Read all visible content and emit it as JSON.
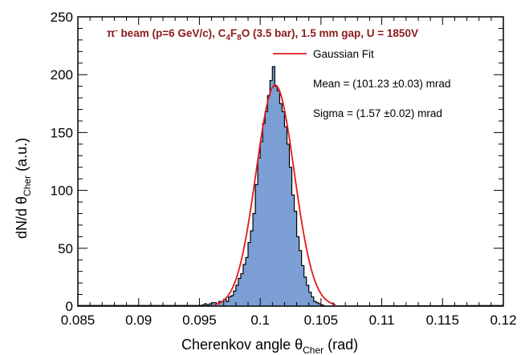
{
  "chart_data": {
    "type": "bar",
    "subtype": "histogram-with-fit",
    "title": {
      "beam": "π",
      "beam_sup": "-",
      "part1": " beam (p=6 GeV/c), C",
      "sub1": "4",
      "part2": "F",
      "sub2": "8",
      "part3": "O (3.5 bar), 1.5 mm gap, U = 1850V",
      "color": "#8b1a1a"
    },
    "xlabel": {
      "main": "Cherenkov angle θ",
      "sub": "Cher",
      "suffix": " (rad)"
    },
    "ylabel": {
      "main": "dN/d θ",
      "sub": "Cher",
      "suffix": " (a.u.)"
    },
    "xlim": [
      0.085,
      0.12
    ],
    "ylim": [
      0,
      250
    ],
    "x_ticks": [
      0.085,
      0.09,
      0.095,
      0.1,
      0.105,
      0.11,
      0.115,
      0.12
    ],
    "x_tick_labels": [
      "0.085",
      "0.09",
      "0.095",
      "0.1",
      "0.105",
      "0.11",
      "0.115",
      "0.12"
    ],
    "y_ticks": [
      0,
      50,
      100,
      150,
      200,
      250
    ],
    "y_tick_labels": [
      "0",
      "50",
      "100",
      "150",
      "200",
      "250"
    ],
    "grid": false,
    "legend": {
      "position": "top-right",
      "fit_label": "Gaussian Fit",
      "mean_text": "Mean  = (101.23  ±0.03) mrad",
      "sigma_text": "Sigma = (1.57  ±0.02) mrad"
    },
    "series": [
      {
        "type": "histogram",
        "fill_color": "#7b9fd4",
        "edge_color": "#000000",
        "bin_width": 0.0002,
        "bin_start": 0.0952,
        "counts": [
          1,
          2,
          1,
          2,
          3,
          3,
          2,
          4,
          4,
          6,
          4,
          8,
          9,
          13,
          18,
          24,
          28,
          36,
          42,
          55,
          65,
          80,
          105,
          128,
          142,
          158,
          168,
          182,
          195,
          207,
          190,
          186,
          175,
          168,
          155,
          140,
          120,
          96,
          82,
          60,
          48,
          35,
          25,
          18,
          12,
          8,
          4,
          3,
          2,
          1
        ]
      },
      {
        "type": "line",
        "name": "Gaussian Fit",
        "color": "#e31a1c",
        "mean": 0.10123,
        "sigma": 0.00157,
        "amplitude": 191,
        "x_range": [
          0.0962,
          0.1062
        ]
      }
    ]
  }
}
